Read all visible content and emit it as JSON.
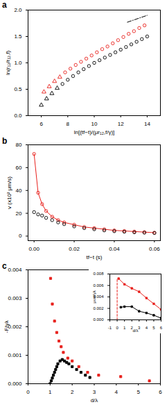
{
  "chart_data": [
    {
      "type": "scatter",
      "title": "a",
      "x_label": "ln[(tf−t)/(μr₁₂,f/γ)]",
      "y_label": "ln(r₁₂/r₁₂,f)",
      "xlim": [
        5,
        15
      ],
      "xticks": [
        6,
        8,
        10,
        12,
        14
      ],
      "ylim": [
        0,
        2
      ],
      "yticks": [
        {
          "value": 0,
          "label": "0.0"
        },
        {
          "value": 0.5,
          "label": "0.5"
        },
        {
          "value": 1,
          "label": "1.0"
        },
        {
          "value": 1.5,
          "label": "1.5"
        },
        {
          "value": 2,
          "label": "2.0"
        }
      ],
      "series": [
        {
          "type": "scatter",
          "color": "#e8201c",
          "marker": "open_triangle",
          "x": [
            6.2,
            6.6,
            7.0,
            7.4
          ],
          "values": [
            0.45,
            0.55,
            0.65,
            0.73
          ]
        },
        {
          "type": "scatter",
          "color": "#e8201c",
          "marker": "open_circle",
          "x": [
            7.8,
            8.2,
            8.6,
            9.0,
            9.4,
            9.8,
            10.2,
            10.6,
            11.0,
            11.4,
            11.8,
            12.2,
            12.6,
            13.0,
            13.4,
            13.8
          ],
          "values": [
            0.82,
            0.89,
            0.96,
            1.02,
            1.08,
            1.14,
            1.2,
            1.26,
            1.31,
            1.37,
            1.43,
            1.49,
            1.55,
            1.6,
            1.66,
            1.71
          ]
        },
        {
          "type": "scatter",
          "color": "#000000",
          "marker": "open_triangle",
          "x": [
            6.0,
            6.4,
            6.8,
            7.2
          ],
          "values": [
            0.2,
            0.32,
            0.42,
            0.52
          ]
        },
        {
          "type": "scatter",
          "color": "#000000",
          "marker": "open_circle",
          "x": [
            7.6,
            8.0,
            8.4,
            8.8,
            9.2,
            9.6,
            10.0,
            10.4,
            10.8,
            11.2,
            11.6,
            12.0,
            12.4,
            12.8,
            13.2,
            13.6,
            14.0
          ],
          "values": [
            0.6,
            0.68,
            0.75,
            0.82,
            0.88,
            0.94,
            1.0,
            1.05,
            1.1,
            1.15,
            1.2,
            1.25,
            1.3,
            1.35,
            1.4,
            1.45,
            1.5
          ]
        },
        {
          "type": "line",
          "color": "#000000",
          "line_style": "dashdot",
          "x": [
            12.5,
            14.0
          ],
          "values": [
            1.77,
            1.9
          ]
        }
      ]
    },
    {
      "type": "scatter",
      "title": "b",
      "x_label": "tf−t (s)",
      "y_label": "v (x10³ μm/s)",
      "xlim": [
        -0.003,
        0.063
      ],
      "xticks": [
        {
          "value": 0,
          "label": "0.00"
        },
        {
          "value": 0.02,
          "label": "0.02"
        },
        {
          "value": 0.04,
          "label": "0.04"
        },
        {
          "value": 0.06,
          "label": "0.06"
        }
      ],
      "ylim": [
        -4,
        80
      ],
      "yticks": [
        0,
        20,
        40,
        60,
        80
      ],
      "series": [
        {
          "type": "line",
          "color": "#e8201c",
          "marker": "open_circle",
          "x": [
            0,
            0.002,
            0.004,
            0.006,
            0.009,
            0.012,
            0.015,
            0.02,
            0.025,
            0.03,
            0.035,
            0.04,
            0.045,
            0.05,
            0.055,
            0.06
          ],
          "values": [
            72,
            38,
            28,
            22,
            17,
            14,
            12,
            10,
            8,
            7,
            6,
            5,
            4.5,
            4,
            3.5,
            3
          ]
        },
        {
          "type": "scatter",
          "color": "#000000",
          "marker": "open_circle",
          "x": [
            0,
            0.002,
            0.004,
            0.006,
            0.009,
            0.012,
            0.015,
            0.02,
            0.025,
            0.03,
            0.035,
            0.04,
            0.045,
            0.05,
            0.055,
            0.06
          ],
          "values": [
            21,
            19,
            18,
            16,
            14,
            12,
            10.5,
            8.5,
            7,
            6,
            5,
            4.3,
            3.8,
            3.3,
            3,
            2.7
          ]
        }
      ]
    },
    {
      "type": "scatter",
      "title": "c",
      "x_label": "d/λ",
      "y_label": "-F/γλ",
      "xlim": [
        0,
        6
      ],
      "xticks": [
        0,
        1,
        2,
        3,
        4,
        5,
        6
      ],
      "ylim": [
        0,
        0.004
      ],
      "yticks": [
        {
          "value": 0,
          "label": "0.000"
        },
        {
          "value": 0.001,
          "label": "0.001"
        },
        {
          "value": 0.002,
          "label": "0.002"
        },
        {
          "value": 0.003,
          "label": "0.003"
        },
        {
          "value": 0.004,
          "label": "0.004"
        }
      ],
      "series": [
        {
          "type": "scatter",
          "color": "#e8201c",
          "marker": "square",
          "x": [
            1.02,
            1.1,
            1.2,
            1.3,
            1.4,
            1.5,
            1.6,
            1.8,
            2.0,
            2.3,
            2.7,
            3.2,
            4.2,
            5.5
          ],
          "values": [
            0.0037,
            0.0028,
            0.0022,
            0.0018,
            0.0015,
            0.0013,
            0.0011,
            0.0009,
            0.0008,
            0.0006,
            0.0004,
            0.0003,
            0.00025,
            0.0001
          ]
        },
        {
          "type": "scatter",
          "color": "#000000",
          "marker": "square",
          "x": [
            1.0,
            1.05,
            1.1,
            1.15,
            1.2,
            1.25,
            1.3,
            1.35,
            1.45,
            1.55,
            1.65,
            1.75,
            1.85,
            2.0,
            2.2,
            2.4,
            2.6,
            2.8
          ],
          "values": [
            0.0,
            0.0001,
            0.0002,
            0.0003,
            0.0004,
            0.0005,
            0.0006,
            0.0007,
            0.0008,
            0.00085,
            0.0008,
            0.00075,
            0.0007,
            0.0006,
            0.0005,
            0.0004,
            0.0003,
            0.00022
          ]
        }
      ]
    },
    {
      "type": "line",
      "x_label": "d/λ",
      "y_label": "μvw/γλ",
      "xlim": [
        -1,
        6
      ],
      "xticks": [
        -1,
        0,
        1,
        2,
        3,
        4,
        5,
        6
      ],
      "ylim": [
        0,
        0.008
      ],
      "yticks": [
        {
          "value": 0,
          "label": "0.000"
        },
        {
          "value": 0.002,
          "label": "0.002"
        },
        {
          "value": 0.004,
          "label": "0.004"
        },
        {
          "value": 0.006,
          "label": "0.006"
        },
        {
          "value": 0.008,
          "label": "0.008"
        }
      ],
      "series": [
        {
          "type": "line",
          "color": "#e8201c",
          "line_style": "dashed",
          "x": [
            0,
            0
          ],
          "values": [
            0,
            0.0072
          ]
        },
        {
          "type": "line",
          "color": "#e8201c",
          "marker": "square",
          "x": [
            0.2,
            1,
            2,
            3,
            4,
            5,
            6
          ],
          "values": [
            0.0072,
            0.0062,
            0.0055,
            0.0049,
            0.0038,
            0.0028,
            0.0018
          ]
        },
        {
          "type": "line",
          "color": "#000000",
          "marker": "square",
          "x": [
            0.5,
            1,
            2,
            3,
            4,
            5,
            6
          ],
          "values": [
            0.0022,
            0.0023,
            0.0023,
            0.0015,
            0.0012,
            0.0008,
            0.0003
          ]
        }
      ]
    }
  ]
}
